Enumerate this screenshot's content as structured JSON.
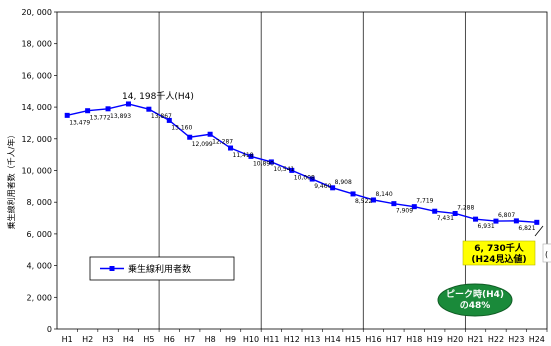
{
  "chart_data": {
    "type": "line",
    "ylabel": "乗生線利用者数（千人/年）",
    "ylim": [
      0,
      20000
    ],
    "yticks": [
      0,
      2000,
      4000,
      6000,
      8000,
      10000,
      12000,
      14000,
      16000,
      18000,
      20000
    ],
    "ytick_labels": [
      "0",
      "2, 000",
      "4, 000",
      "6, 000",
      "8, 000",
      "10, 000",
      "12, 000",
      "14, 000",
      "16, 000",
      "18, 000",
      "20, 000"
    ],
    "categories": [
      "H1",
      "H2",
      "H3",
      "H4",
      "H5",
      "H6",
      "H7",
      "H8",
      "H9",
      "H10",
      "H11",
      "H12",
      "H13",
      "H14",
      "H15",
      "H16",
      "H17",
      "H18",
      "H19",
      "H20",
      "H21",
      "H22",
      "H23",
      "H24"
    ],
    "series": [
      {
        "name": "乗生線利用者数",
        "color": "#0000ff",
        "values": [
          13479,
          13772,
          13893,
          14198,
          13867,
          13160,
          12099,
          12287,
          11418,
          10890,
          10541,
          10008,
          9460,
          8908,
          8522,
          8140,
          7909,
          7719,
          7431,
          7288,
          6931,
          6807,
          6821,
          6730
        ],
        "labels": [
          "13,479",
          "13,772",
          "13,893",
          "",
          "13,867",
          "13,160",
          "12,099",
          "12,287",
          "11,418",
          "10,890",
          "10,541",
          "10,008",
          "9,460",
          "8,908",
          "8,522",
          "8,140",
          "7,909",
          "7,719",
          "7,431",
          "7,288",
          "6,931",
          "6,807",
          "6,821",
          ""
        ]
      }
    ],
    "grid": "vertical lines every 5 categories",
    "legend": "lower-left inside plot",
    "annotations": {
      "peak": "14, 198千人(H4)",
      "latest_line1": "6, 730千人",
      "latest_line2": "(H24見込値)",
      "ratio_line1": "ピーク時(H4)",
      "ratio_line2": "の48%",
      "partial_mark": "(",
      "colors": {
        "callout_fill": "#ffff00",
        "oval_fill": "#1a8a3a",
        "line": "#0000ff"
      }
    }
  }
}
